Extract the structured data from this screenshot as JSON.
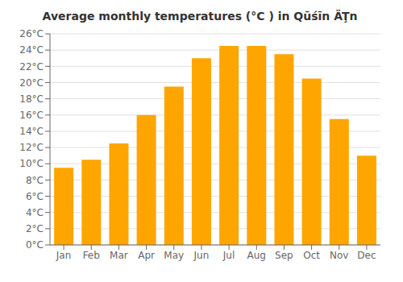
{
  "chart_data": {
    "type": "bar",
    "title": "Average monthly temperatures (°C ) in Qūśīn ÄŢn",
    "categories": [
      "Jan",
      "Feb",
      "Mar",
      "Apr",
      "May",
      "Jun",
      "Jul",
      "Aug",
      "Sep",
      "Oct",
      "Nov",
      "Dec"
    ],
    "values": [
      9.5,
      10.5,
      12.5,
      16.0,
      19.5,
      23.0,
      24.5,
      24.5,
      23.5,
      20.5,
      15.5,
      11.0
    ],
    "color": "#FFA500",
    "ylim": [
      0,
      26
    ],
    "yticks": [
      {
        "value": 0,
        "label": "0°C"
      },
      {
        "value": 2,
        "label": "2°C"
      },
      {
        "value": 4,
        "label": "4°C"
      },
      {
        "value": 6,
        "label": "6°C"
      },
      {
        "value": 8,
        "label": "8°C"
      },
      {
        "value": 10,
        "label": "10°C"
      },
      {
        "value": 12,
        "label": "12°C"
      },
      {
        "value": 14,
        "label": "14°C"
      },
      {
        "value": 16,
        "label": "16°C"
      },
      {
        "value": 18,
        "label": "18°C"
      },
      {
        "value": 20,
        "label": "20°C"
      },
      {
        "value": 22,
        "label": "22°C"
      },
      {
        "value": 24,
        "label": "24°C"
      },
      {
        "value": 26,
        "label": "26°C"
      }
    ],
    "grid": true
  }
}
